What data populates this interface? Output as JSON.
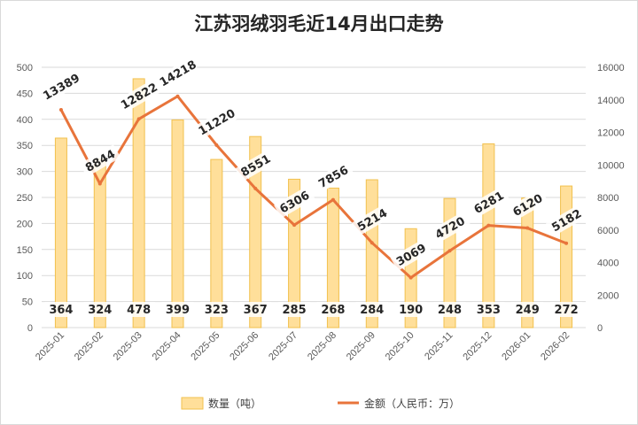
{
  "chart_data": {
    "type": "bar+line",
    "title": "江苏羽绒羽毛近14月出口走势",
    "categories": [
      "2025-01",
      "2025-02",
      "2025-03",
      "2025-04",
      "2025-05",
      "2025-06",
      "2025-07",
      "2025-08",
      "2025-09",
      "2025-10",
      "2025-11",
      "2025-12",
      "2026-01",
      "2026-02"
    ],
    "series": [
      {
        "name": "数量（吨）",
        "type": "bar",
        "axis": "left",
        "values": [
          364,
          324,
          478,
          399,
          323,
          367,
          285,
          268,
          284,
          190,
          248,
          353,
          249,
          272
        ]
      },
      {
        "name": "金额（人民币：万）",
        "type": "line",
        "axis": "right",
        "values": [
          13389,
          8844,
          12822,
          14218,
          11220,
          8551,
          6306,
          7856,
          5214,
          3069,
          4720,
          6281,
          6120,
          5182
        ]
      }
    ],
    "left_axis": {
      "ylim": [
        0,
        500
      ],
      "ticks": [
        0,
        50,
        100,
        150,
        200,
        250,
        300,
        350,
        400,
        450,
        500
      ]
    },
    "right_axis": {
      "ylim": [
        0,
        16000
      ],
      "ticks": [
        0,
        2000,
        4000,
        6000,
        8000,
        10000,
        12000,
        14000,
        16000
      ]
    },
    "legend_position": "bottom",
    "colors": {
      "bar_fill": "#FFDF9A",
      "bar_stroke": "#F2C14E",
      "line": "#E8743B",
      "grid": "#D9D9D9"
    }
  }
}
